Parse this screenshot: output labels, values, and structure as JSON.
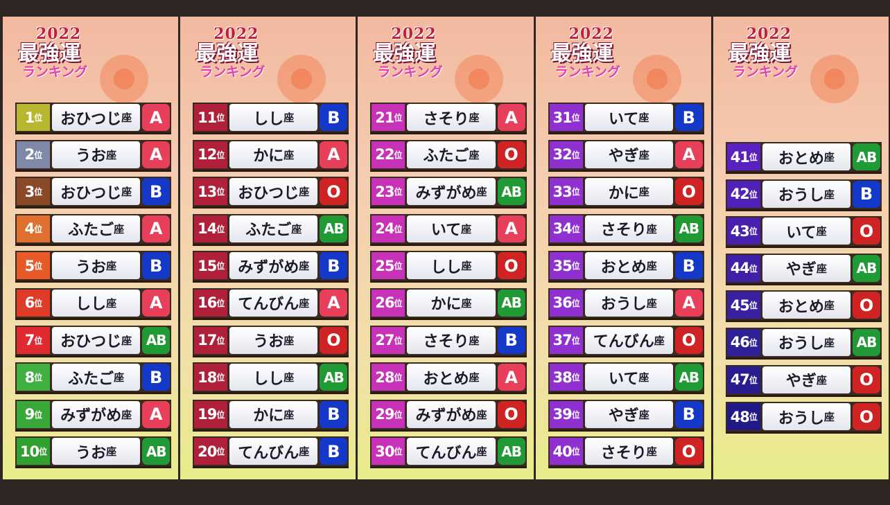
{
  "logo": {
    "year": "2022",
    "title": "最強運",
    "subtitle": "ランキング"
  },
  "rank_suffix": "位",
  "sign_suffix": "座",
  "colors": {
    "A": "#e8405a",
    "B": "#1438c8",
    "O": "#d02424",
    "AB": "#209a34"
  },
  "columns": [
    {
      "rows": [
        {
          "rank": "1",
          "sign": "おひつじ",
          "blood": "A",
          "color": "#b8b830"
        },
        {
          "rank": "2",
          "sign": "うお",
          "blood": "A",
          "color": "#8088a8"
        },
        {
          "rank": "3",
          "sign": "おひつじ",
          "blood": "B",
          "color": "#8a4a28"
        },
        {
          "rank": "4",
          "sign": "ふたご",
          "blood": "A",
          "color": "#e07030"
        },
        {
          "rank": "5",
          "sign": "うお",
          "blood": "B",
          "color": "#e85a28"
        },
        {
          "rank": "6",
          "sign": "しし",
          "blood": "A",
          "color": "#e03a28"
        },
        {
          "rank": "7",
          "sign": "おひつじ",
          "blood": "AB",
          "color": "#e02a30"
        },
        {
          "rank": "8",
          "sign": "ふたご",
          "blood": "B",
          "color": "#40b040"
        },
        {
          "rank": "9",
          "sign": "みずがめ",
          "blood": "A",
          "color": "#38a838"
        },
        {
          "rank": "10",
          "sign": "うお",
          "blood": "AB",
          "color": "#30a030"
        }
      ]
    },
    {
      "rows": [
        {
          "rank": "11",
          "sign": "しし",
          "blood": "B",
          "color": "#b0203a"
        },
        {
          "rank": "12",
          "sign": "かに",
          "blood": "A",
          "color": "#b0203a"
        },
        {
          "rank": "13",
          "sign": "おひつじ",
          "blood": "O",
          "color": "#b0203a"
        },
        {
          "rank": "14",
          "sign": "ふたご",
          "blood": "AB",
          "color": "#b0203a"
        },
        {
          "rank": "15",
          "sign": "みずがめ",
          "blood": "B",
          "color": "#b0203a"
        },
        {
          "rank": "16",
          "sign": "てんびん",
          "blood": "A",
          "color": "#b0203a"
        },
        {
          "rank": "17",
          "sign": "うお",
          "blood": "O",
          "color": "#b0203a"
        },
        {
          "rank": "18",
          "sign": "しし",
          "blood": "AB",
          "color": "#b0203a"
        },
        {
          "rank": "19",
          "sign": "かに",
          "blood": "B",
          "color": "#b0203a"
        },
        {
          "rank": "20",
          "sign": "てんびん",
          "blood": "B",
          "color": "#b0203a"
        }
      ]
    },
    {
      "rows": [
        {
          "rank": "21",
          "sign": "さそり",
          "blood": "A",
          "color": "#c832b8"
        },
        {
          "rank": "22",
          "sign": "ふたご",
          "blood": "O",
          "color": "#c832b8"
        },
        {
          "rank": "23",
          "sign": "みずがめ",
          "blood": "AB",
          "color": "#c832b8"
        },
        {
          "rank": "24",
          "sign": "いて",
          "blood": "A",
          "color": "#c832b8"
        },
        {
          "rank": "25",
          "sign": "しし",
          "blood": "O",
          "color": "#c832b8"
        },
        {
          "rank": "26",
          "sign": "かに",
          "blood": "AB",
          "color": "#c832b8"
        },
        {
          "rank": "27",
          "sign": "さそり",
          "blood": "B",
          "color": "#c832b8"
        },
        {
          "rank": "28",
          "sign": "おとめ",
          "blood": "A",
          "color": "#c832b8"
        },
        {
          "rank": "29",
          "sign": "みずがめ",
          "blood": "O",
          "color": "#c832b8"
        },
        {
          "rank": "30",
          "sign": "てんびん",
          "blood": "AB",
          "color": "#c832b8"
        }
      ]
    },
    {
      "rows": [
        {
          "rank": "31",
          "sign": "いて",
          "blood": "B",
          "color": "#9030d0"
        },
        {
          "rank": "32",
          "sign": "やぎ",
          "blood": "A",
          "color": "#9030d0"
        },
        {
          "rank": "33",
          "sign": "かに",
          "blood": "O",
          "color": "#9030d0"
        },
        {
          "rank": "34",
          "sign": "さそり",
          "blood": "AB",
          "color": "#9030d0"
        },
        {
          "rank": "35",
          "sign": "おとめ",
          "blood": "B",
          "color": "#9030d0"
        },
        {
          "rank": "36",
          "sign": "おうし",
          "blood": "A",
          "color": "#9030d0"
        },
        {
          "rank": "37",
          "sign": "てんびん",
          "blood": "O",
          "color": "#9030d0"
        },
        {
          "rank": "38",
          "sign": "いて",
          "blood": "AB",
          "color": "#9030d0"
        },
        {
          "rank": "39",
          "sign": "やぎ",
          "blood": "B",
          "color": "#9030d0"
        },
        {
          "rank": "40",
          "sign": "さそり",
          "blood": "O",
          "color": "#9030d0"
        }
      ]
    },
    {
      "rows": [
        {
          "rank": "41",
          "sign": "おとめ",
          "blood": "AB",
          "color": "#5a20c0"
        },
        {
          "rank": "42",
          "sign": "おうし",
          "blood": "B",
          "color": "#5020b8"
        },
        {
          "rank": "43",
          "sign": "いて",
          "blood": "O",
          "color": "#4820b0"
        },
        {
          "rank": "44",
          "sign": "やぎ",
          "blood": "AB",
          "color": "#4020a8"
        },
        {
          "rank": "45",
          "sign": "おとめ",
          "blood": "O",
          "color": "#3820a0"
        },
        {
          "rank": "46",
          "sign": "おうし",
          "blood": "AB",
          "color": "#302098"
        },
        {
          "rank": "47",
          "sign": "やぎ",
          "blood": "O",
          "color": "#281c90"
        },
        {
          "rank": "48",
          "sign": "おうし",
          "blood": "O",
          "color": "#201a88"
        }
      ]
    }
  ]
}
